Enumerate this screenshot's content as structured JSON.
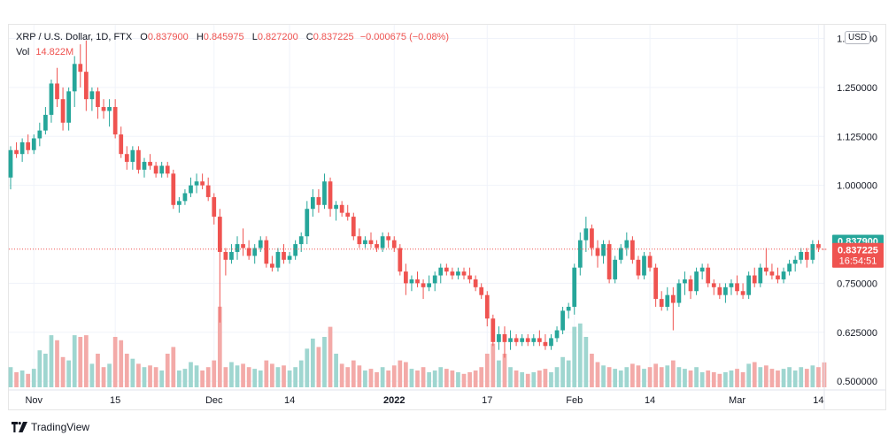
{
  "legend": {
    "symbol": "XRP / U.S. Dollar, 1D, FTX",
    "open_label": "O",
    "open": "0.837900",
    "high_label": "H",
    "high": "0.845975",
    "low_label": "L",
    "low": "0.827200",
    "close_label": "C",
    "close": "0.837225",
    "change": "−0.000675 (−0.08%)",
    "vol_label": "Vol",
    "vol": "14.822M"
  },
  "currency": "USD",
  "price_tags": {
    "open": "0.837900",
    "close": "0.837225",
    "countdown": "16:54:51"
  },
  "brand": "TradingView",
  "colors": {
    "up": "#26a69a",
    "down": "#ef5350",
    "up_volume": "#9fd6d0",
    "down_volume": "#f3aaa8",
    "grid": "#f0f3fa",
    "text": "#131722"
  },
  "chart_data": {
    "type": "candlestick",
    "ylim": [
      0.48,
      1.41
    ],
    "y_ticks": [
      {
        "value": 1.375,
        "label": "1.375000"
      },
      {
        "value": 1.25,
        "label": "1.250000"
      },
      {
        "value": 1.125,
        "label": "1.125000"
      },
      {
        "value": 1.0,
        "label": "1.000000"
      },
      {
        "value": 0.75,
        "label": "0.750000"
      },
      {
        "value": 0.625,
        "label": "0.625000"
      },
      {
        "value": 0.5,
        "label": "0.500000"
      }
    ],
    "x_ticks": [
      {
        "index": 4,
        "label": "Nov"
      },
      {
        "index": 18,
        "label": "15"
      },
      {
        "index": 35,
        "label": "Dec"
      },
      {
        "index": 48,
        "label": "14"
      },
      {
        "index": 66,
        "label": "2022",
        "bold": true
      },
      {
        "index": 82,
        "label": "17"
      },
      {
        "index": 97,
        "label": "Feb"
      },
      {
        "index": 110,
        "label": "14"
      },
      {
        "index": 125,
        "label": "Mar"
      },
      {
        "index": 139,
        "label": "14"
      }
    ],
    "vol_max": 50,
    "candles": [
      [
        1.02,
        1.1,
        0.99,
        1.09,
        12
      ],
      [
        1.09,
        1.11,
        1.07,
        1.08,
        9
      ],
      [
        1.08,
        1.12,
        1.06,
        1.11,
        10
      ],
      [
        1.11,
        1.13,
        1.08,
        1.09,
        8
      ],
      [
        1.09,
        1.13,
        1.08,
        1.12,
        11
      ],
      [
        1.12,
        1.16,
        1.1,
        1.14,
        22
      ],
      [
        1.14,
        1.2,
        1.13,
        1.18,
        20
      ],
      [
        1.18,
        1.27,
        1.16,
        1.26,
        31
      ],
      [
        1.26,
        1.3,
        1.2,
        1.22,
        28
      ],
      [
        1.22,
        1.25,
        1.14,
        1.16,
        18
      ],
      [
        1.16,
        1.25,
        1.14,
        1.24,
        16
      ],
      [
        1.24,
        1.33,
        1.2,
        1.31,
        31
      ],
      [
        1.31,
        1.36,
        1.25,
        1.29,
        30
      ],
      [
        1.29,
        1.37,
        1.19,
        1.22,
        31
      ],
      [
        1.22,
        1.25,
        1.19,
        1.24,
        14
      ],
      [
        1.24,
        1.25,
        1.17,
        1.2,
        20
      ],
      [
        1.2,
        1.22,
        1.17,
        1.19,
        12
      ],
      [
        1.19,
        1.22,
        1.15,
        1.2,
        14
      ],
      [
        1.2,
        1.22,
        1.12,
        1.13,
        30
      ],
      [
        1.13,
        1.15,
        1.07,
        1.08,
        28
      ],
      [
        1.08,
        1.1,
        1.04,
        1.06,
        20
      ],
      [
        1.06,
        1.1,
        1.04,
        1.09,
        17
      ],
      [
        1.09,
        1.1,
        1.03,
        1.04,
        14
      ],
      [
        1.04,
        1.07,
        1.02,
        1.06,
        12
      ],
      [
        1.06,
        1.08,
        1.04,
        1.05,
        13
      ],
      [
        1.05,
        1.06,
        1.02,
        1.03,
        12
      ],
      [
        1.03,
        1.06,
        1.02,
        1.05,
        10
      ],
      [
        1.05,
        1.06,
        1.02,
        1.03,
        20
      ],
      [
        1.03,
        1.04,
        0.94,
        0.95,
        24
      ],
      [
        0.95,
        0.97,
        0.93,
        0.96,
        10
      ],
      [
        0.96,
        0.99,
        0.95,
        0.98,
        11
      ],
      [
        0.98,
        1.02,
        0.97,
        1.0,
        15
      ],
      [
        1.0,
        1.03,
        0.98,
        1.01,
        13
      ],
      [
        1.01,
        1.03,
        0.99,
        1.0,
        10
      ],
      [
        1.0,
        1.02,
        0.96,
        0.97,
        12
      ],
      [
        0.97,
        0.98,
        0.9,
        0.92,
        16
      ],
      [
        0.92,
        0.94,
        0.65,
        0.83,
        48
      ],
      [
        0.83,
        0.84,
        0.77,
        0.81,
        12
      ],
      [
        0.81,
        0.85,
        0.8,
        0.83,
        15
      ],
      [
        0.83,
        0.87,
        0.81,
        0.85,
        13
      ],
      [
        0.85,
        0.89,
        0.82,
        0.84,
        14
      ],
      [
        0.84,
        0.86,
        0.81,
        0.82,
        12
      ],
      [
        0.82,
        0.85,
        0.8,
        0.84,
        11
      ],
      [
        0.84,
        0.87,
        0.83,
        0.86,
        10
      ],
      [
        0.86,
        0.87,
        0.79,
        0.8,
        16
      ],
      [
        0.8,
        0.82,
        0.78,
        0.79,
        14
      ],
      [
        0.79,
        0.84,
        0.78,
        0.83,
        12
      ],
      [
        0.83,
        0.85,
        0.8,
        0.81,
        13
      ],
      [
        0.81,
        0.83,
        0.8,
        0.82,
        10
      ],
      [
        0.82,
        0.86,
        0.81,
        0.85,
        12
      ],
      [
        0.85,
        0.88,
        0.83,
        0.87,
        16
      ],
      [
        0.87,
        0.96,
        0.85,
        0.94,
        23
      ],
      [
        0.94,
        0.99,
        0.92,
        0.97,
        29
      ],
      [
        0.97,
        0.99,
        0.93,
        0.95,
        24
      ],
      [
        0.95,
        1.03,
        0.94,
        1.01,
        30
      ],
      [
        1.01,
        1.02,
        0.92,
        0.94,
        36
      ],
      [
        0.94,
        0.96,
        0.91,
        0.95,
        20
      ],
      [
        0.95,
        0.96,
        0.92,
        0.93,
        14
      ],
      [
        0.93,
        0.95,
        0.91,
        0.92,
        12
      ],
      [
        0.92,
        0.93,
        0.86,
        0.87,
        16
      ],
      [
        0.87,
        0.89,
        0.84,
        0.85,
        13
      ],
      [
        0.85,
        0.87,
        0.84,
        0.86,
        10
      ],
      [
        0.86,
        0.88,
        0.84,
        0.85,
        11
      ],
      [
        0.85,
        0.86,
        0.83,
        0.84,
        9
      ],
      [
        0.84,
        0.88,
        0.83,
        0.87,
        12
      ],
      [
        0.87,
        0.88,
        0.84,
        0.86,
        10
      ],
      [
        0.86,
        0.87,
        0.83,
        0.84,
        13
      ],
      [
        0.84,
        0.85,
        0.77,
        0.78,
        16
      ],
      [
        0.78,
        0.8,
        0.72,
        0.75,
        15
      ],
      [
        0.75,
        0.77,
        0.73,
        0.76,
        11
      ],
      [
        0.76,
        0.78,
        0.74,
        0.75,
        10
      ],
      [
        0.75,
        0.76,
        0.71,
        0.74,
        12
      ],
      [
        0.74,
        0.77,
        0.73,
        0.75,
        9
      ],
      [
        0.75,
        0.78,
        0.73,
        0.77,
        10
      ],
      [
        0.77,
        0.8,
        0.75,
        0.79,
        12
      ],
      [
        0.79,
        0.8,
        0.77,
        0.78,
        11
      ],
      [
        0.78,
        0.79,
        0.76,
        0.77,
        10
      ],
      [
        0.77,
        0.79,
        0.76,
        0.78,
        9
      ],
      [
        0.78,
        0.79,
        0.76,
        0.77,
        8
      ],
      [
        0.77,
        0.79,
        0.75,
        0.76,
        9
      ],
      [
        0.76,
        0.77,
        0.73,
        0.74,
        10
      ],
      [
        0.74,
        0.75,
        0.71,
        0.72,
        12
      ],
      [
        0.72,
        0.73,
        0.64,
        0.66,
        20
      ],
      [
        0.66,
        0.67,
        0.59,
        0.6,
        26
      ],
      [
        0.6,
        0.64,
        0.58,
        0.62,
        16
      ],
      [
        0.62,
        0.64,
        0.56,
        0.6,
        20
      ],
      [
        0.6,
        0.63,
        0.58,
        0.61,
        12
      ],
      [
        0.61,
        0.62,
        0.59,
        0.6,
        10
      ],
      [
        0.6,
        0.62,
        0.59,
        0.61,
        9
      ],
      [
        0.61,
        0.62,
        0.59,
        0.6,
        8
      ],
      [
        0.6,
        0.62,
        0.59,
        0.61,
        9
      ],
      [
        0.61,
        0.63,
        0.59,
        0.6,
        10
      ],
      [
        0.6,
        0.62,
        0.58,
        0.59,
        11
      ],
      [
        0.59,
        0.62,
        0.58,
        0.61,
        9
      ],
      [
        0.61,
        0.64,
        0.6,
        0.63,
        12
      ],
      [
        0.63,
        0.69,
        0.62,
        0.68,
        18
      ],
      [
        0.68,
        0.7,
        0.66,
        0.69,
        16
      ],
      [
        0.69,
        0.8,
        0.67,
        0.79,
        36
      ],
      [
        0.79,
        0.88,
        0.77,
        0.86,
        38
      ],
      [
        0.86,
        0.92,
        0.83,
        0.89,
        30
      ],
      [
        0.89,
        0.9,
        0.82,
        0.84,
        20
      ],
      [
        0.84,
        0.86,
        0.79,
        0.82,
        15
      ],
      [
        0.82,
        0.86,
        0.8,
        0.85,
        13
      ],
      [
        0.85,
        0.86,
        0.75,
        0.76,
        12
      ],
      [
        0.76,
        0.82,
        0.75,
        0.81,
        11
      ],
      [
        0.81,
        0.85,
        0.8,
        0.84,
        10
      ],
      [
        0.84,
        0.88,
        0.82,
        0.86,
        12
      ],
      [
        0.86,
        0.87,
        0.8,
        0.81,
        14
      ],
      [
        0.81,
        0.82,
        0.76,
        0.77,
        13
      ],
      [
        0.77,
        0.83,
        0.76,
        0.82,
        11
      ],
      [
        0.82,
        0.83,
        0.78,
        0.79,
        12
      ],
      [
        0.79,
        0.8,
        0.69,
        0.71,
        14
      ],
      [
        0.71,
        0.73,
        0.68,
        0.69,
        12
      ],
      [
        0.69,
        0.74,
        0.68,
        0.72,
        13
      ],
      [
        0.72,
        0.74,
        0.63,
        0.7,
        16
      ],
      [
        0.7,
        0.76,
        0.69,
        0.75,
        12
      ],
      [
        0.75,
        0.78,
        0.72,
        0.76,
        11
      ],
      [
        0.76,
        0.77,
        0.71,
        0.73,
        10
      ],
      [
        0.73,
        0.79,
        0.72,
        0.78,
        12
      ],
      [
        0.78,
        0.8,
        0.76,
        0.79,
        9
      ],
      [
        0.79,
        0.8,
        0.74,
        0.75,
        10
      ],
      [
        0.75,
        0.76,
        0.72,
        0.74,
        9
      ],
      [
        0.74,
        0.75,
        0.71,
        0.72,
        8
      ],
      [
        0.72,
        0.75,
        0.7,
        0.74,
        9
      ],
      [
        0.74,
        0.76,
        0.72,
        0.75,
        10
      ],
      [
        0.75,
        0.77,
        0.72,
        0.73,
        11
      ],
      [
        0.73,
        0.75,
        0.71,
        0.72,
        9
      ],
      [
        0.72,
        0.78,
        0.71,
        0.77,
        14
      ],
      [
        0.77,
        0.79,
        0.74,
        0.75,
        15
      ],
      [
        0.75,
        0.8,
        0.74,
        0.79,
        12
      ],
      [
        0.79,
        0.84,
        0.77,
        0.78,
        13
      ],
      [
        0.78,
        0.8,
        0.76,
        0.77,
        11
      ],
      [
        0.77,
        0.79,
        0.75,
        0.76,
        10
      ],
      [
        0.76,
        0.79,
        0.75,
        0.78,
        11
      ],
      [
        0.78,
        0.81,
        0.77,
        0.8,
        12
      ],
      [
        0.8,
        0.82,
        0.78,
        0.81,
        10
      ],
      [
        0.81,
        0.84,
        0.8,
        0.83,
        12
      ],
      [
        0.83,
        0.84,
        0.79,
        0.81,
        11
      ],
      [
        0.81,
        0.86,
        0.8,
        0.85,
        13
      ],
      [
        0.85,
        0.86,
        0.83,
        0.84,
        12
      ],
      [
        0.8379,
        0.845975,
        0.8272,
        0.837225,
        14.822
      ]
    ]
  }
}
